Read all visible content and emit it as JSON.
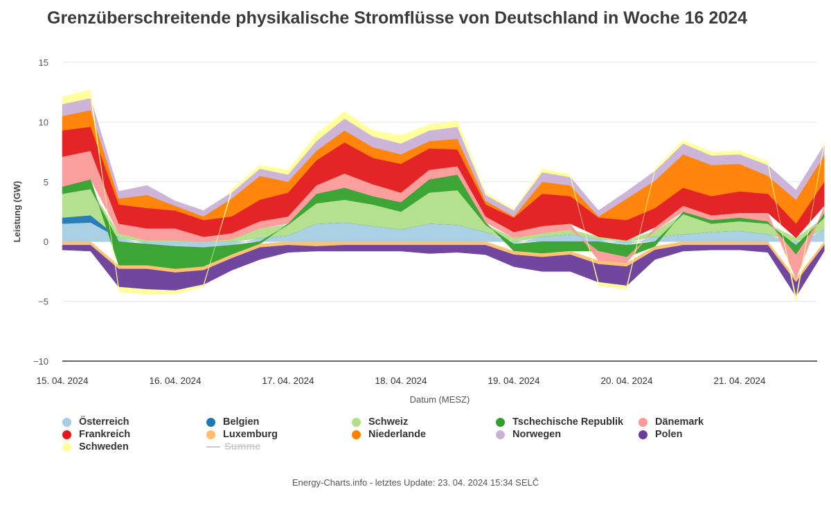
{
  "title": "Grenzüberschreitende physikalische Stromflüsse von Deutschland in Woche 16 2024",
  "footer": "Energy-Charts.info - letztes Update: 23. 04. 2024 15:34 SELČ",
  "chart_data": {
    "type": "area",
    "stacked": true,
    "title": "Grenzüberschreitende physikalische Stromflüsse von Deutschland in Woche 16 2024",
    "xlabel": "Datum (MESZ)",
    "ylabel": "Leistung (GW)",
    "ylim": [
      -10,
      15
    ],
    "yticks": [
      -10,
      -5,
      0,
      5,
      10,
      15
    ],
    "x": [
      "15. 04. 2024",
      "15. 04. 2024 06:00",
      "15. 04. 2024 12:00",
      "15. 04. 2024 18:00",
      "16. 04. 2024",
      "16. 04. 2024 06:00",
      "16. 04. 2024 12:00",
      "16. 04. 2024 18:00",
      "17. 04. 2024",
      "17. 04. 2024 06:00",
      "17. 04. 2024 12:00",
      "17. 04. 2024 18:00",
      "18. 04. 2024",
      "18. 04. 2024 06:00",
      "18. 04. 2024 12:00",
      "18. 04. 2024 18:00",
      "19. 04. 2024",
      "19. 04. 2024 06:00",
      "19. 04. 2024 12:00",
      "19. 04. 2024 18:00",
      "20. 04. 2024",
      "20. 04. 2024 06:00",
      "20. 04. 2024 12:00",
      "20. 04. 2024 18:00",
      "21. 04. 2024",
      "21. 04. 2024 06:00",
      "21. 04. 2024 12:00",
      "21. 04. 2024 18:00"
    ],
    "xticks": [
      "15. 04. 2024",
      "16. 04. 2024",
      "17. 04. 2024",
      "18. 04. 2024",
      "19. 04. 2024",
      "20. 04. 2024",
      "21. 04. 2024"
    ],
    "legend_position": "bottom",
    "grid": true,
    "series": [
      {
        "name": "Österreich",
        "color": "#a6cee3",
        "values": [
          1.5,
          1.6,
          0.3,
          -0.2,
          -0.4,
          -0.5,
          -0.3,
          0.3,
          0.5,
          1.5,
          1.6,
          1.3,
          1.0,
          1.5,
          1.4,
          0.8,
          -0.2,
          0.4,
          0.6,
          0.2,
          -0.3,
          0.4,
          0.6,
          0.8,
          0.9,
          0.6,
          -0.3,
          1.0
        ]
      },
      {
        "name": "Belgien",
        "color": "#1f78b4",
        "values": [
          0.5,
          0.6,
          0,
          0,
          0,
          0,
          0,
          0,
          0,
          0,
          0,
          0,
          0,
          0,
          0,
          0,
          0,
          0,
          0,
          0,
          0,
          0,
          0,
          0,
          0,
          0,
          0,
          0
        ]
      },
      {
        "name": "Schweiz",
        "color": "#b2df8a",
        "values": [
          2.0,
          2.2,
          0.4,
          0.1,
          0.1,
          0,
          0.2,
          0.8,
          0.9,
          1.7,
          1.9,
          1.8,
          1.5,
          2.6,
          2.9,
          0.6,
          0.3,
          0.3,
          0.4,
          0.2,
          0.1,
          0.5,
          1.7,
          0.7,
          0.8,
          0.9,
          0.3,
          1.0
        ]
      },
      {
        "name": "Tschechische Republik",
        "color": "#33a02c",
        "values": [
          0.6,
          0.8,
          -2.0,
          -1.8,
          -1.9,
          -1.6,
          -0.8,
          -0.2,
          0.1,
          0.8,
          1.0,
          0.7,
          0.8,
          1.1,
          1.3,
          0.2,
          -0.6,
          -1.0,
          -0.8,
          -0.8,
          -1.0,
          -0.4,
          0.2,
          0.3,
          0.3,
          0.2,
          -0.8,
          0.4
        ]
      },
      {
        "name": "Dänemark",
        "color": "#fb9a99",
        "values": [
          2.5,
          2.4,
          0.8,
          1.0,
          1.0,
          0.4,
          0.5,
          0.6,
          0.6,
          0.7,
          1.2,
          1.0,
          0.8,
          0.8,
          0.7,
          0.5,
          0.5,
          0.6,
          0.5,
          -0.8,
          -0.5,
          0.3,
          0.5,
          0.4,
          0.4,
          0.7,
          -2.0,
          0.6
        ]
      },
      {
        "name": "Frankreich",
        "color": "#e31a1c",
        "values": [
          2.2,
          2.0,
          1.6,
          1.7,
          1.5,
          1.4,
          1.4,
          1.8,
          2.0,
          2.1,
          2.6,
          2.2,
          2.4,
          1.8,
          1.4,
          1.0,
          1.2,
          2.7,
          2.3,
          1.6,
          1.7,
          1.6,
          1.5,
          1.6,
          1.8,
          1.6,
          1.2,
          2.0
        ]
      },
      {
        "name": "Luxemburg",
        "color": "#fdbf6f",
        "values": [
          -0.3,
          -0.3,
          -0.3,
          -0.3,
          -0.3,
          -0.3,
          -0.3,
          -0.3,
          -0.3,
          -0.4,
          -0.3,
          -0.3,
          -0.3,
          -0.3,
          -0.3,
          -0.3,
          -0.3,
          -0.3,
          -0.3,
          -0.3,
          -0.3,
          -0.3,
          -0.3,
          -0.3,
          -0.3,
          -0.3,
          -0.3,
          -0.3
        ]
      },
      {
        "name": "Niederlande",
        "color": "#ff7f00",
        "values": [
          1.2,
          1.4,
          0.5,
          1.1,
          0.4,
          0.3,
          1.5,
          2.0,
          0.9,
          0.8,
          1.0,
          0.9,
          0.8,
          0.6,
          0.9,
          0.3,
          0.1,
          1.0,
          0.9,
          0.1,
          1.8,
          2.3,
          2.8,
          2.6,
          2.3,
          1.5,
          2.0,
          2.2
        ]
      },
      {
        "name": "Norwegen",
        "color": "#cab2d6",
        "values": [
          1.0,
          1.0,
          0.6,
          0.8,
          0.4,
          0.5,
          0.5,
          0.6,
          0.6,
          0.8,
          1.0,
          0.9,
          0.9,
          0.9,
          1.0,
          0.5,
          0.5,
          0.8,
          0.7,
          0.5,
          0.6,
          0.8,
          0.9,
          0.8,
          0.8,
          0.9,
          0.8,
          0.9
        ]
      },
      {
        "name": "Polen",
        "color": "#6a3d9a",
        "values": [
          -0.4,
          -0.5,
          -1.5,
          -1.7,
          -1.5,
          -1.2,
          -1.0,
          -1.0,
          -0.6,
          -0.4,
          -0.5,
          -0.5,
          -0.5,
          -0.7,
          -0.6,
          -0.8,
          -1.0,
          -1.2,
          -1.4,
          -1.5,
          -1.6,
          -0.8,
          -0.5,
          -0.4,
          -0.4,
          -0.6,
          -1.2,
          -0.5
        ]
      },
      {
        "name": "Schweden",
        "color": "#ffff99",
        "values": [
          0.6,
          0.7,
          -0.4,
          -0.4,
          -0.3,
          -0.2,
          0.3,
          0.3,
          0.4,
          0.6,
          0.6,
          0.5,
          0.7,
          0.5,
          0.5,
          0.2,
          0.1,
          0.3,
          0.2,
          -0.3,
          -0.3,
          0.2,
          0.3,
          0.3,
          0.3,
          0.3,
          -0.5,
          0.3
        ]
      }
    ],
    "hidden_series": [
      "Summe"
    ]
  },
  "legend": {
    "items": [
      {
        "name": "Österreich",
        "color": "#a6cee3"
      },
      {
        "name": "Belgien",
        "color": "#1f78b4"
      },
      {
        "name": "Schweiz",
        "color": "#b2df8a"
      },
      {
        "name": "Tschechische Republik",
        "color": "#33a02c"
      },
      {
        "name": "Dänemark",
        "color": "#fb9a99"
      },
      {
        "name": "Frankreich",
        "color": "#e31a1c"
      },
      {
        "name": "Luxemburg",
        "color": "#fdbf6f"
      },
      {
        "name": "Niederlande",
        "color": "#ff7f00"
      },
      {
        "name": "Norwegen",
        "color": "#cab2d6"
      },
      {
        "name": "Polen",
        "color": "#6a3d9a"
      },
      {
        "name": "Schweden",
        "color": "#ffff99"
      },
      {
        "name": "Summe",
        "color": "#cccccc",
        "hidden": true
      }
    ]
  }
}
